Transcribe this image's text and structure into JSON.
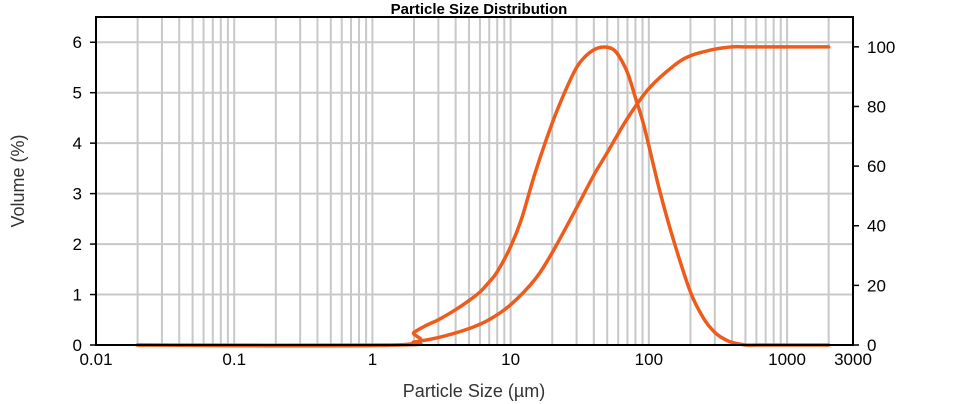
{
  "chart_data": {
    "type": "line",
    "title": "Particle Size Distribution",
    "xlabel": "Particle Size (µm)",
    "ylabel": "Volume (%)",
    "x_scale": "log",
    "xlim": [
      0.01,
      3000
    ],
    "ylim": [
      0,
      6.5
    ],
    "y2lim": [
      0,
      110
    ],
    "grid": true,
    "x_ticks": [
      {
        "value": 0.01,
        "label": "0.01"
      },
      {
        "value": 0.1,
        "label": "0.1"
      },
      {
        "value": 1,
        "label": "1"
      },
      {
        "value": 10,
        "label": "10"
      },
      {
        "value": 100,
        "label": "100"
      },
      {
        "value": 1000,
        "label": "1000"
      },
      {
        "value": 3000,
        "label": "3000"
      }
    ],
    "y_ticks": [
      0,
      1,
      2,
      3,
      4,
      5,
      6
    ],
    "y2_ticks": [
      0,
      20,
      40,
      60,
      80,
      100
    ],
    "line_color": "#ee5c1c",
    "series": [
      {
        "axis": "left",
        "x": [
          0.02,
          1.5,
          2,
          2.5,
          3,
          4,
          5,
          6,
          7,
          8,
          10,
          12,
          15,
          20,
          25,
          30,
          35,
          40,
          45,
          50,
          55,
          60,
          70,
          80,
          90,
          100,
          120,
          150,
          200,
          250,
          300,
          350,
          400,
          500,
          600,
          800,
          1000,
          2000
        ],
        "y": [
          0,
          0,
          0.25,
          0.4,
          0.5,
          0.7,
          0.88,
          1.05,
          1.25,
          1.45,
          1.95,
          2.5,
          3.4,
          4.4,
          5.05,
          5.5,
          5.73,
          5.85,
          5.9,
          5.9,
          5.86,
          5.75,
          5.4,
          4.9,
          4.45,
          3.95,
          3.05,
          2.1,
          1.05,
          0.52,
          0.25,
          0.12,
          0.05,
          0,
          0,
          0,
          0,
          0
        ]
      },
      {
        "axis": "right",
        "x": [
          0.02,
          1.5,
          2,
          3,
          5,
          7,
          10,
          15,
          20,
          30,
          40,
          50,
          70,
          100,
          150,
          200,
          300,
          400,
          500,
          700,
          1000,
          2000
        ],
        "y": [
          0,
          0,
          1,
          2.5,
          5.5,
          8.5,
          13.5,
          22,
          31,
          46,
          57,
          64.5,
          76,
          86,
          93.5,
          97,
          99.2,
          100,
          100,
          100,
          100,
          100
        ]
      }
    ]
  }
}
